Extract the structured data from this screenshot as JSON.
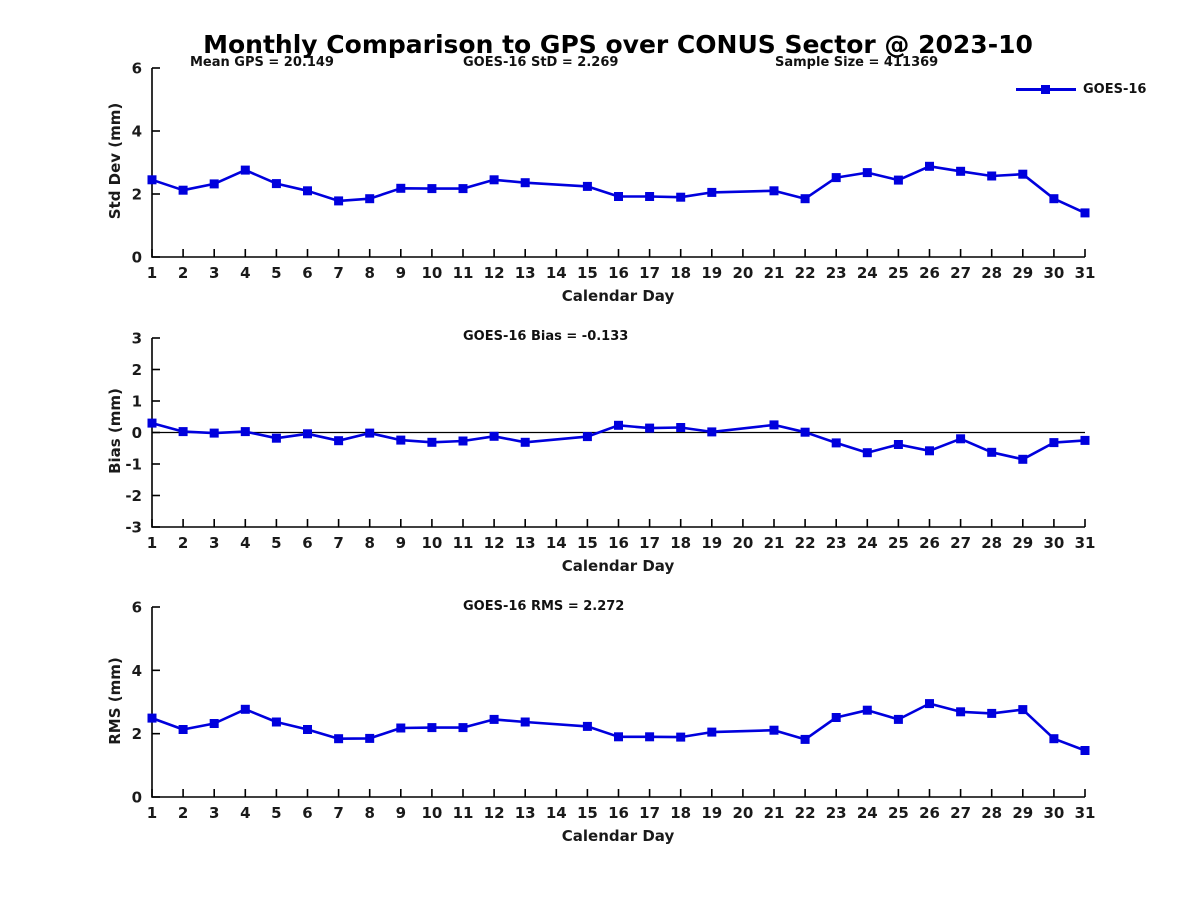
{
  "header": {
    "title": "Monthly Comparison to GPS over CONUS Sector @ 2023-10"
  },
  "chart_data": [
    {
      "type": "line",
      "name": "std-dev-chart",
      "annotations": [
        "Mean GPS = 20.149",
        "GOES-16 StD = 2.269",
        "Sample Size = 411369"
      ],
      "xlabel": "Calendar Day",
      "ylabel": "Std Dev (mm)",
      "xlim": [
        1,
        31
      ],
      "ylim": [
        0,
        6
      ],
      "yticks": [
        0,
        2,
        4,
        6
      ],
      "grid": false,
      "zero_line": false,
      "legend": {
        "label": "GOES-16",
        "position": "top-right"
      },
      "x": [
        1,
        2,
        3,
        4,
        5,
        6,
        7,
        8,
        9,
        10,
        11,
        12,
        13,
        14,
        15,
        16,
        17,
        18,
        19,
        20,
        21,
        22,
        23,
        24,
        25,
        26,
        27,
        28,
        29,
        30,
        31
      ],
      "series": [
        {
          "name": "GOES-16",
          "color": "#0000dd",
          "marker": "square",
          "values": [
            2.45,
            2.12,
            2.32,
            2.76,
            2.33,
            2.1,
            1.78,
            1.85,
            2.18,
            2.17,
            2.17,
            2.45,
            2.36,
            null,
            2.24,
            1.92,
            1.92,
            1.9,
            2.05,
            null,
            2.1,
            1.85,
            2.52,
            2.68,
            2.44,
            2.88,
            2.72,
            2.57,
            2.63,
            1.85,
            1.4
          ]
        }
      ]
    },
    {
      "type": "line",
      "name": "bias-chart",
      "annotations": [
        "GOES-16 Bias = -0.133"
      ],
      "xlabel": "Calendar Day",
      "ylabel": "Bias (mm)",
      "xlim": [
        1,
        31
      ],
      "ylim": [
        -3,
        3
      ],
      "yticks": [
        3,
        2,
        1,
        0,
        -1,
        -2,
        -3
      ],
      "grid": false,
      "zero_line": true,
      "x": [
        1,
        2,
        3,
        4,
        5,
        6,
        7,
        8,
        9,
        10,
        11,
        12,
        13,
        14,
        15,
        16,
        17,
        18,
        19,
        20,
        21,
        22,
        23,
        24,
        25,
        26,
        27,
        28,
        29,
        30,
        31
      ],
      "series": [
        {
          "name": "GOES-16",
          "color": "#0000dd",
          "marker": "square",
          "values": [
            0.3,
            0.03,
            -0.02,
            0.03,
            -0.18,
            -0.04,
            -0.26,
            -0.02,
            -0.24,
            -0.31,
            -0.27,
            -0.12,
            -0.31,
            null,
            -0.13,
            0.23,
            0.14,
            0.16,
            0.02,
            null,
            0.24,
            0.01,
            -0.33,
            -0.64,
            -0.38,
            -0.58,
            -0.2,
            -0.63,
            -0.85,
            -0.32,
            -0.25
          ]
        }
      ]
    },
    {
      "type": "line",
      "name": "rms-chart",
      "annotations": [
        "GOES-16 RMS = 2.272"
      ],
      "xlabel": "Calendar Day",
      "ylabel": "RMS (mm)",
      "xlim": [
        1,
        31
      ],
      "ylim": [
        0,
        6
      ],
      "yticks": [
        0,
        2,
        4,
        6
      ],
      "grid": false,
      "zero_line": false,
      "x": [
        1,
        2,
        3,
        4,
        5,
        6,
        7,
        8,
        9,
        10,
        11,
        12,
        13,
        14,
        15,
        16,
        17,
        18,
        19,
        20,
        21,
        22,
        23,
        24,
        25,
        26,
        27,
        28,
        29,
        30,
        31
      ],
      "series": [
        {
          "name": "GOES-16",
          "color": "#0000dd",
          "marker": "square",
          "values": [
            2.49,
            2.13,
            2.32,
            2.77,
            2.37,
            2.13,
            1.84,
            1.85,
            2.18,
            2.19,
            2.19,
            2.45,
            2.37,
            null,
            2.23,
            1.9,
            1.9,
            1.89,
            2.05,
            null,
            2.11,
            1.82,
            2.51,
            2.74,
            2.45,
            2.95,
            2.69,
            2.64,
            2.76,
            1.84,
            1.47
          ]
        }
      ]
    }
  ]
}
